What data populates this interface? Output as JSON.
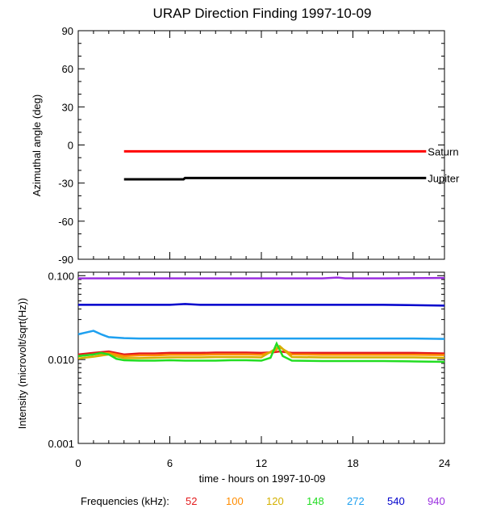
{
  "title": "URAP Direction Finding  1997-10-09",
  "xlabel": "time - hours on 1997-10-09",
  "freq_label": "Frequencies (kHz):",
  "frequencies": [
    {
      "label": "52",
      "color": "#e31a1c"
    },
    {
      "label": "100",
      "color": "#ff8c00"
    },
    {
      "label": "120",
      "color": "#d4b000"
    },
    {
      "label": "148",
      "color": "#22dd22"
    },
    {
      "label": "272",
      "color": "#1ea0f0"
    },
    {
      "label": "540",
      "color": "#0000cc"
    },
    {
      "label": "940",
      "color": "#9b30e0"
    }
  ],
  "chart_data": [
    {
      "type": "line",
      "ylabel": "Azimuthal angle (deg)",
      "xlim": [
        0,
        24
      ],
      "ylim": [
        -90,
        90
      ],
      "xticks": [
        0,
        6,
        12,
        18,
        24
      ],
      "yticks": [
        90,
        60,
        30,
        0,
        -30,
        -60,
        -90
      ],
      "series": [
        {
          "name": "Saturn",
          "color": "#ff0000",
          "x": [
            3,
            22.8
          ],
          "y": [
            -5,
            -5
          ]
        },
        {
          "name": "Jupiter",
          "color": "#000000",
          "x": [
            3,
            6.9,
            7.0,
            22.8
          ],
          "y": [
            -27,
            -27,
            -26,
            -26
          ]
        }
      ]
    },
    {
      "type": "line",
      "ylabel": "Intensity (microvolt/sqrt(Hz))",
      "xlim": [
        0,
        24
      ],
      "ylim": [
        0.001,
        0.11
      ],
      "yscale": "log",
      "ytick_labels": [
        "0.100",
        "0.010",
        "0.001"
      ],
      "yticks": [
        0.1,
        0.01,
        0.001
      ],
      "series": [
        {
          "name": "52",
          "color": "#e31a1c",
          "x": [
            0,
            1,
            2,
            3,
            4,
            5,
            6,
            7,
            8,
            9,
            10,
            11,
            12,
            12.8,
            13.2,
            14,
            16,
            18,
            20,
            22,
            24
          ],
          "y": [
            0.0115,
            0.012,
            0.0125,
            0.0115,
            0.0118,
            0.0118,
            0.012,
            0.012,
            0.012,
            0.0121,
            0.0121,
            0.0121,
            0.012,
            0.0122,
            0.0125,
            0.012,
            0.012,
            0.012,
            0.012,
            0.012,
            0.0118
          ]
        },
        {
          "name": "100",
          "color": "#ff8c00",
          "x": [
            0,
            1,
            2,
            3,
            4,
            5,
            6,
            7,
            8,
            9,
            10,
            11,
            12,
            12.8,
            13.2,
            14,
            16,
            18,
            20,
            22,
            24
          ],
          "y": [
            0.011,
            0.0115,
            0.012,
            0.011,
            0.0112,
            0.0112,
            0.0114,
            0.0114,
            0.0114,
            0.0115,
            0.0115,
            0.0115,
            0.0114,
            0.0125,
            0.014,
            0.0115,
            0.0114,
            0.0114,
            0.0114,
            0.0114,
            0.0113
          ]
        },
        {
          "name": "120",
          "color": "#d4b000",
          "x": [
            0,
            1,
            2,
            3,
            4,
            5,
            6,
            7,
            8,
            9,
            10,
            11,
            12,
            12.8,
            13.2,
            14,
            16,
            18,
            20,
            22,
            24
          ],
          "y": [
            0.0103,
            0.0108,
            0.0115,
            0.0104,
            0.0104,
            0.0105,
            0.0106,
            0.0106,
            0.0106,
            0.0107,
            0.0107,
            0.0107,
            0.0106,
            0.013,
            0.0145,
            0.0107,
            0.0106,
            0.0106,
            0.0106,
            0.0106,
            0.0105
          ]
        },
        {
          "name": "148",
          "color": "#22dd22",
          "x": [
            0,
            1,
            1.5,
            2,
            2.5,
            3,
            4,
            5,
            6,
            7,
            8,
            9,
            10,
            11,
            12,
            12.6,
            13,
            13.4,
            14,
            16,
            18,
            20,
            22,
            24
          ],
          "y": [
            0.011,
            0.0115,
            0.012,
            0.0115,
            0.0102,
            0.0098,
            0.0097,
            0.0097,
            0.0098,
            0.0097,
            0.0097,
            0.0097,
            0.0098,
            0.0098,
            0.0097,
            0.0105,
            0.0155,
            0.011,
            0.0097,
            0.0096,
            0.0096,
            0.0096,
            0.0095,
            0.0094
          ]
        },
        {
          "name": "272",
          "color": "#1ea0f0",
          "x": [
            0,
            0.5,
            1,
            1.5,
            2,
            3,
            4,
            6,
            8,
            10,
            12,
            14,
            16,
            18,
            20,
            22,
            24
          ],
          "y": [
            0.02,
            0.021,
            0.022,
            0.02,
            0.0185,
            0.018,
            0.0178,
            0.0178,
            0.0178,
            0.0178,
            0.0178,
            0.0178,
            0.0178,
            0.0178,
            0.0178,
            0.0178,
            0.0176
          ]
        },
        {
          "name": "540",
          "color": "#0000cc",
          "x": [
            0,
            4,
            6,
            7,
            8,
            12,
            16,
            20,
            24
          ],
          "y": [
            0.045,
            0.045,
            0.045,
            0.046,
            0.045,
            0.045,
            0.045,
            0.045,
            0.044
          ]
        },
        {
          "name": "940",
          "color": "#9b30e0",
          "x": [
            0,
            4,
            8,
            12,
            16,
            17,
            17.5,
            20,
            24
          ],
          "y": [
            0.093,
            0.093,
            0.093,
            0.093,
            0.093,
            0.095,
            0.093,
            0.093,
            0.094
          ]
        }
      ]
    }
  ]
}
